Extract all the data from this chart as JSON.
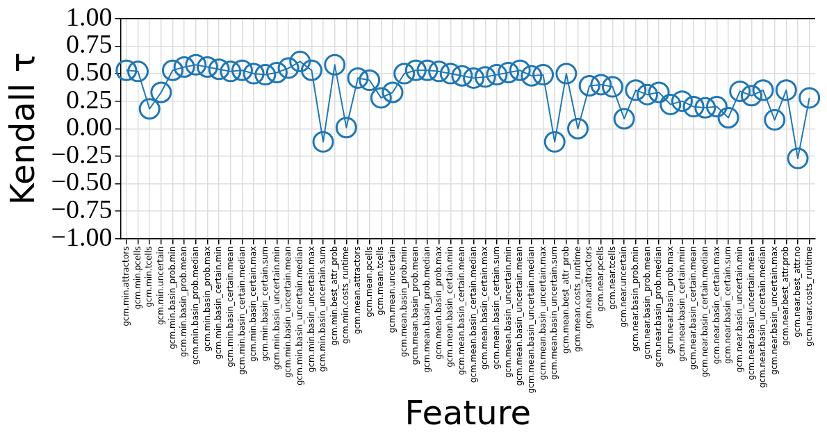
{
  "chart_data": {
    "type": "line",
    "xlabel": "Feature",
    "ylabel": "Kendall τ",
    "categories": [
      "gcm.min.attractors",
      "gcm.min.pcells",
      "gcm.min.tcells",
      "gcm.min.uncertain",
      "gcm.min.basin_prob.min",
      "gcm.min.basin_prob.mean",
      "gcm.min.basin_prob.median",
      "gcm.min.basin_prob.max",
      "gcm.min.basin_certain.min",
      "gcm.min.basin_certain.mean",
      "gcm.min.basin_certain.median",
      "gcm.min.basin_certain.max",
      "gcm.min.basin_certain.sum",
      "gcm.min.basin_uncertain.min",
      "gcm.min.basin_uncertain.mean",
      "gcm.min.basin_uncertain.median",
      "gcm.min.basin_uncertain.max",
      "gcm.min.basin_uncertain.sum",
      "gcm.min.best_attr_prob",
      "gcm.min.costs_runtime",
      "gcm.mean.attractors",
      "gcm.mean.pcells",
      "gcm.mean.tcells",
      "gcm.mean.uncertain",
      "gcm.mean.basin_prob.min",
      "gcm.mean.basin_prob.mean",
      "gcm.mean.basin_prob.median",
      "gcm.mean.basin_prob.max",
      "gcm.mean.basin_certain.min",
      "gcm.mean.basin_certain.mean",
      "gcm.mean.basin_certain.median",
      "gcm.mean.basin_certain.max",
      "gcm.mean.basin_certain.sum",
      "gcm.mean.basin_uncertain.min",
      "gcm.mean.basin_uncertain.mean",
      "gcm.mean.basin_uncertain.median",
      "gcm.mean.basin_uncertain.max",
      "gcm.mean.basin_uncertain.sum",
      "gcm.mean.best_attr_prob",
      "gcm.mean.costs_runtime",
      "gcm.near.attractors",
      "gcm.near.pcells",
      "gcm.near.tcells",
      "gcm.near.uncertain",
      "gcm.near.basin_prob.min",
      "gcm.near.basin_prob.mean",
      "gcm.near.basin_prob.median",
      "gcm.near.basin_prob.max",
      "gcm.near.basin_certain.min",
      "gcm.near.basin_certain.mean",
      "gcm.near.basin_certain.median",
      "gcm.near.basin_certain.max",
      "gcm.near.basin_certain.sum",
      "gcm.near.basin_uncertain.min",
      "gcm.near.basin_uncertain.mean",
      "gcm.near.basin_uncertain.median",
      "gcm.near.basin_uncertain.max",
      "gcm.near.best_attr.prob",
      "gcm.near.best_attr.no",
      "gcm.near.costs_runtime"
    ],
    "series": [
      {
        "color": "#1f77b4",
        "values": [
          0.53,
          0.52,
          0.18,
          0.33,
          0.53,
          0.56,
          0.58,
          0.56,
          0.54,
          0.52,
          0.53,
          0.5,
          0.49,
          0.51,
          0.55,
          0.61,
          0.53,
          -0.12,
          0.58,
          0.01,
          0.46,
          0.44,
          0.28,
          0.33,
          0.5,
          0.53,
          0.53,
          0.52,
          0.5,
          0.48,
          0.46,
          0.47,
          0.49,
          0.51,
          0.53,
          0.48,
          0.49,
          -0.12,
          0.5,
          0.0,
          0.39,
          0.4,
          0.38,
          0.09,
          0.35,
          0.31,
          0.33,
          0.22,
          0.25,
          0.2,
          0.19,
          0.2,
          0.1,
          0.34,
          0.3,
          0.35,
          0.08,
          0.35,
          -0.27,
          0.28
        ]
      }
    ],
    "ylim": [
      -1,
      1
    ],
    "yticks": [
      {
        "value": -1,
        "label": "−1.00"
      },
      {
        "value": -0.75,
        "label": "−0.75"
      },
      {
        "value": -0.5,
        "label": "−0.50"
      },
      {
        "value": -0.25,
        "label": "−0.25"
      },
      {
        "value": 0,
        "label": "0.00"
      },
      {
        "value": 0.25,
        "label": "0.25"
      },
      {
        "value": 0.5,
        "label": "0.50"
      },
      {
        "value": 0.75,
        "label": "0.75"
      },
      {
        "value": 1,
        "label": "1.00"
      }
    ],
    "grid": true,
    "marker": "circle",
    "line_style": "solid"
  }
}
